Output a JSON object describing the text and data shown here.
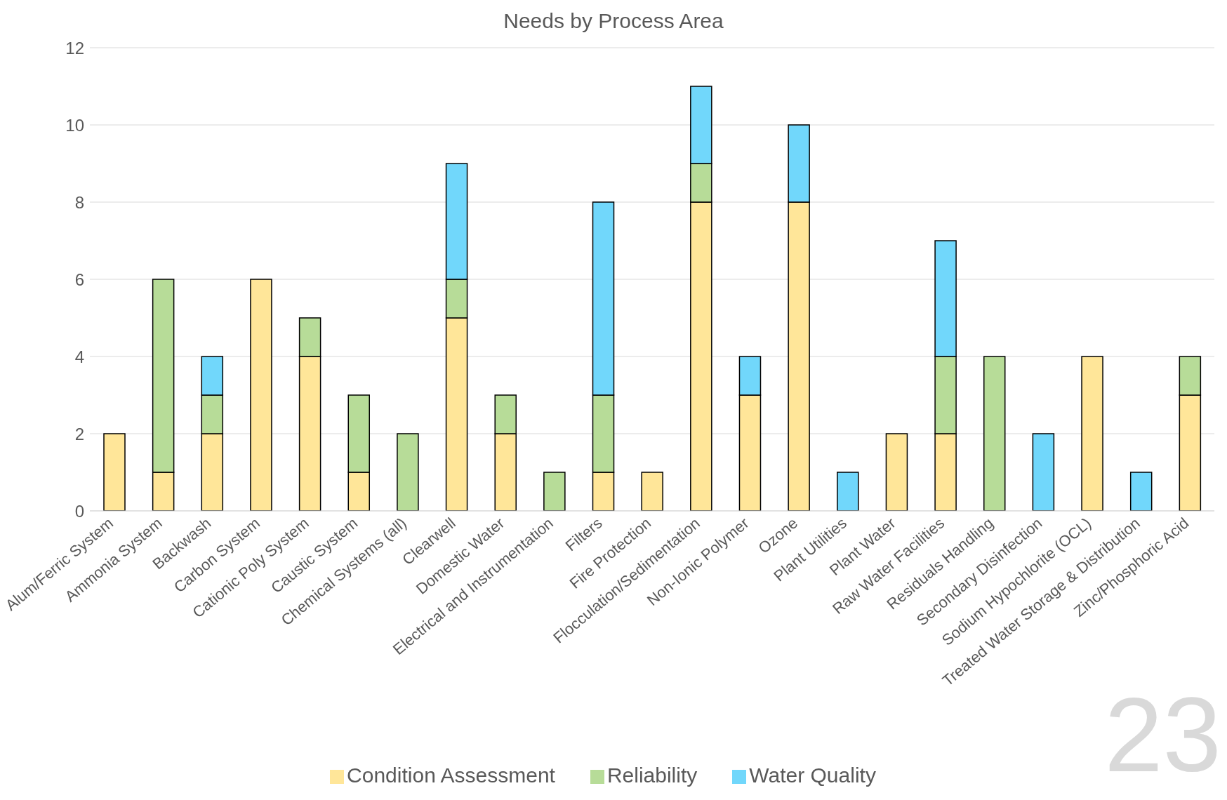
{
  "chart_data": {
    "type": "bar",
    "title": "Needs by Process Area",
    "stacked": true,
    "categories": [
      "Alum/Ferric System",
      "Ammonia System",
      "Backwash",
      "Carbon System",
      "Cationic Poly System",
      "Caustic System",
      "Chemical Systems (all)",
      "Clearwell",
      "Domestic Water",
      "Electrical and Instrumentation",
      "Filters",
      "Fire Protection",
      "Flocculation/Sedimentation",
      "Non-Ionic Polymer",
      "Ozone",
      "Plant Utilities",
      "Plant Water",
      "Raw Water Facilities",
      "Residuals Handling",
      "Secondary Disinfection",
      "Sodium Hypochlorite (OCL)",
      "Treated Water Storage & Distribution",
      "Zinc/Phosphoric Acid"
    ],
    "series": [
      {
        "name": "Condition Assessment",
        "color": "#ffe699",
        "values": [
          2,
          1,
          2,
          6,
          4,
          1,
          0,
          5,
          2,
          0,
          1,
          1,
          8,
          3,
          8,
          0,
          2,
          2,
          0,
          0,
          4,
          0,
          3
        ]
      },
      {
        "name": "Reliability",
        "color": "#b7dc98",
        "values": [
          0,
          5,
          1,
          0,
          1,
          2,
          2,
          1,
          1,
          1,
          2,
          0,
          1,
          0,
          0,
          0,
          0,
          2,
          4,
          0,
          0,
          0,
          1
        ]
      },
      {
        "name": "Water Quality",
        "color": "#71d7fb",
        "values": [
          0,
          0,
          1,
          0,
          0,
          0,
          0,
          3,
          0,
          0,
          5,
          0,
          2,
          1,
          2,
          1,
          0,
          3,
          0,
          2,
          0,
          1,
          0
        ]
      }
    ],
    "ylim": [
      0,
      12
    ],
    "yticks": [
      0,
      2,
      4,
      6,
      8,
      10,
      12
    ],
    "grid": "y",
    "legend": "bottom",
    "annotations": [
      "23"
    ]
  }
}
